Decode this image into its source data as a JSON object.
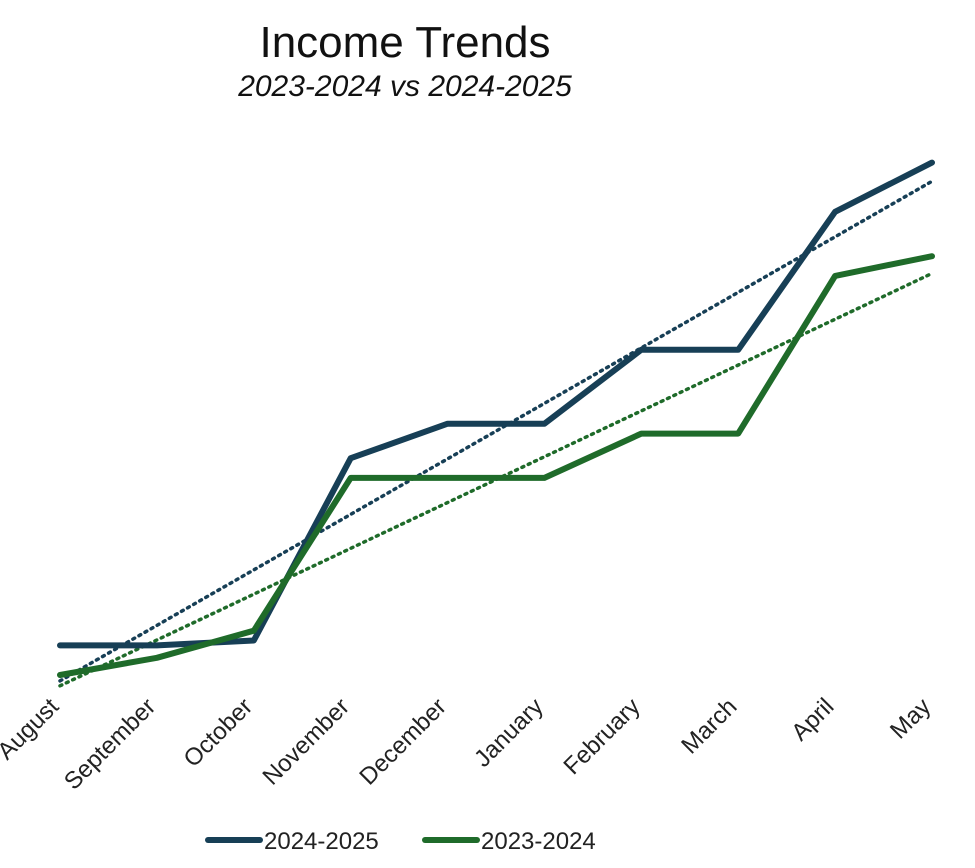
{
  "chart_data": {
    "type": "line",
    "title": "Income Trends",
    "subtitle": "2023-2024 vs 2024-2025",
    "categories": [
      "August",
      "September",
      "October",
      "November",
      "December",
      "January",
      "February",
      "March",
      "April",
      "May"
    ],
    "series": [
      {
        "name": "2024-2025",
        "color": "#173f56",
        "values": [
          6,
          6,
          7,
          44,
          51,
          51,
          66,
          66,
          94,
          104
        ]
      },
      {
        "name": "2023-2024",
        "color": "#1f6b2a",
        "values": [
          0,
          3.5,
          9,
          40,
          40,
          40,
          49,
          49,
          81,
          85
        ]
      }
    ],
    "trendlines": [
      {
        "series": "2024-2025",
        "type": "linear",
        "style": "dotted"
      },
      {
        "series": "2023-2024",
        "type": "linear",
        "style": "dotted"
      }
    ],
    "ylim": [
      0,
      110
    ],
    "grid": false,
    "yaxis_visible": false,
    "legend_position": "bottom"
  }
}
